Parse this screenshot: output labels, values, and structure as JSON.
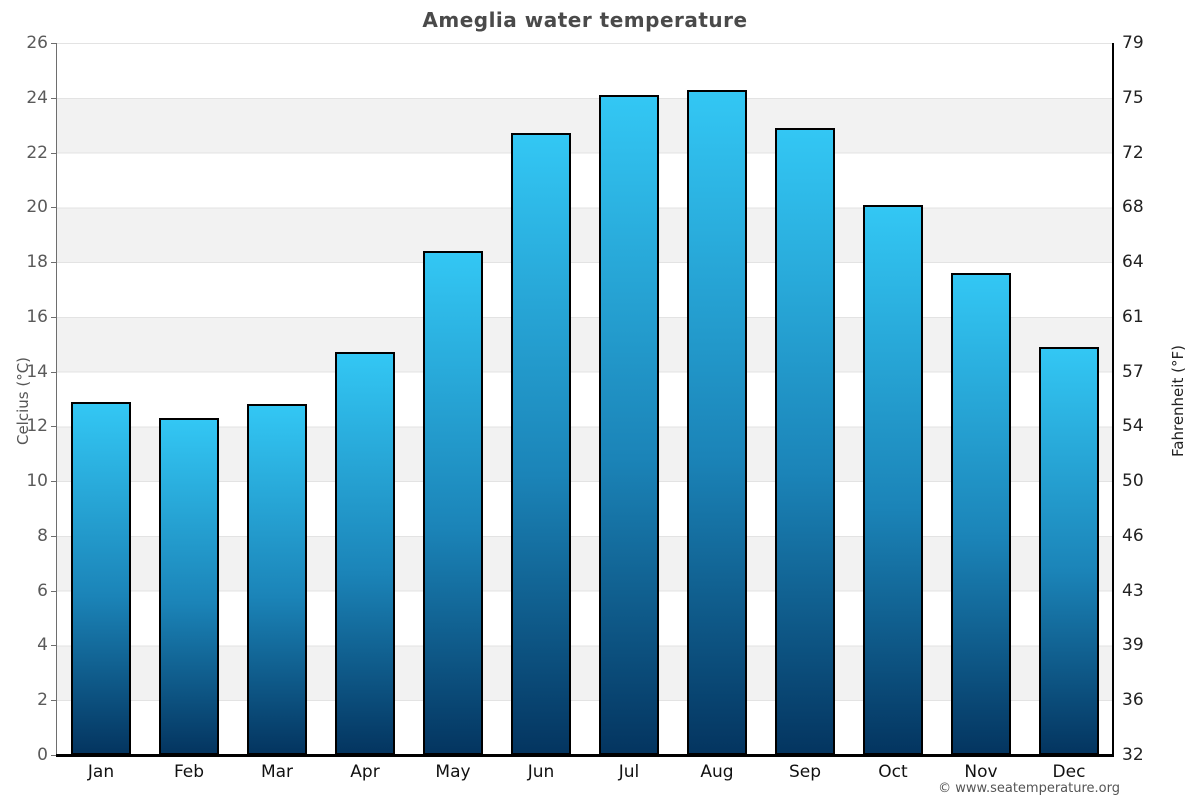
{
  "title": "Ameglia water temperature",
  "copyright": "© www.seatemperature.org",
  "chart_data": {
    "type": "bar",
    "title": "Ameglia water temperature",
    "categories": [
      "Jan",
      "Feb",
      "Mar",
      "Apr",
      "May",
      "Jun",
      "Jul",
      "Aug",
      "Sep",
      "Oct",
      "Nov",
      "Dec"
    ],
    "values": [
      12.9,
      12.3,
      12.8,
      14.7,
      18.4,
      22.7,
      24.1,
      24.3,
      22.9,
      20.1,
      17.6,
      14.9
    ],
    "value_unit": "°C",
    "ylabel_left": "Celcius (°C)",
    "ylabel_right": "Fahrenheit (°F)",
    "yticks_left": [
      26,
      24,
      22,
      20,
      18,
      16,
      14,
      12,
      10,
      8,
      6,
      4,
      2,
      0
    ],
    "yticks_right": [
      79,
      75,
      72,
      68,
      64,
      61,
      57,
      54,
      50,
      46,
      43,
      39,
      36,
      32
    ],
    "ylim": [
      0,
      26
    ],
    "grid": "horizontal gridlines every 2°C with alternating white/gray bands",
    "legend": "none",
    "colors": {
      "bar_gradient_top": "#33c7f4",
      "bar_gradient_bottom": "#043560",
      "bar_border": "#000000",
      "band_gray": "#f2f2f2",
      "gridline": "#e3e3e3",
      "title_text": "#4a4a4a",
      "left_axis_text": "#5a5a5a",
      "right_axis_text": "#222222",
      "month_text": "#111111",
      "copyright_text": "#555555"
    }
  }
}
